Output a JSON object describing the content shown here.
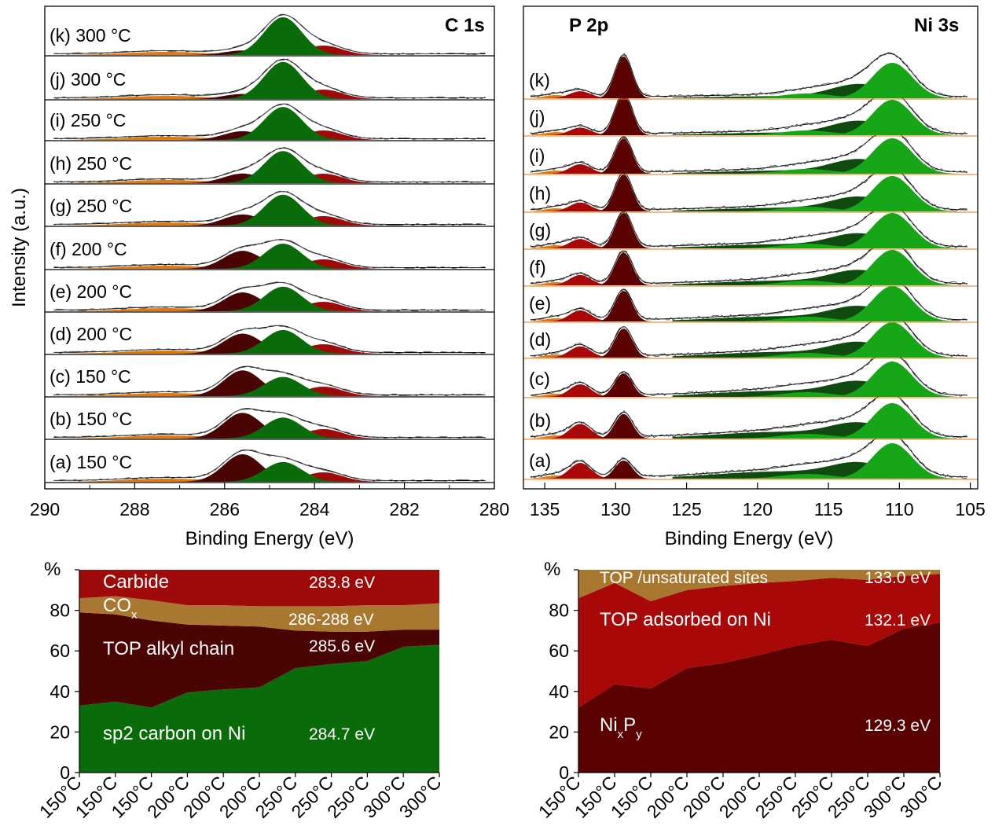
{
  "xps_c1s": {
    "title": "C 1s",
    "ylabel": "Intensity (a.u.)",
    "xlabel": "Binding Energy (eV)",
    "x_ticks": [
      "290",
      "288",
      "286",
      "284",
      "282",
      "280"
    ],
    "samples": [
      "(a) 150 °C",
      "(b) 150 °C",
      "(c) 150 °C",
      "(d) 200 °C",
      "(e) 200 °C",
      "(f) 200 °C",
      "(g) 250 °C",
      "(h) 250 °C",
      "(i) 250 °C",
      "(j) 300 °C",
      "(k) 300 °C"
    ]
  },
  "xps_p2p": {
    "title_left": "P 2p",
    "title_right": "Ni 3s",
    "xlabel": "Binding Energy (eV)",
    "x_ticks": [
      "135",
      "130",
      "125",
      "120",
      "115",
      "110",
      "105"
    ],
    "samples": [
      "(a)",
      "(b)",
      "(c)",
      "(d)",
      "(e)",
      "(f)",
      "(g)",
      "(h)",
      "(i)",
      "(j)",
      "(k)"
    ]
  },
  "colors": {
    "sp2": "#0a6b0a",
    "alkyl": "#4a0404",
    "cox": "#a97830",
    "carbide": "#9e0a0a",
    "nixpy": "#5a0202",
    "top_adsorbed": "#a80808",
    "top_unsat": "#a97830",
    "fit_green": "#17a617",
    "fit_dark_green": "#0f4a0f",
    "orange": "#e07a10"
  },
  "chart_data": [
    {
      "type": "area",
      "stacked": true,
      "ylabel": "%",
      "ylim": [
        0,
        100
      ],
      "y_ticks": [
        "0",
        "20",
        "40",
        "60",
        "80"
      ],
      "categories": [
        "150°C",
        "150°C",
        "150°C",
        "200°C",
        "200°C",
        "200°C",
        "250°C",
        "250°C",
        "250°C",
        "300°C",
        "300°C"
      ],
      "series": [
        {
          "name": "sp2 carbon on Ni",
          "energy": "284.7 eV",
          "values": [
            33,
            35,
            32,
            39.5,
            41,
            42,
            51.5,
            53.5,
            55,
            62,
            63
          ]
        },
        {
          "name": "TOP alkyl chain",
          "energy": "285.6 eV",
          "values": [
            46,
            43,
            43,
            33.5,
            31.5,
            30,
            18.5,
            16,
            14.5,
            8.5,
            7.5
          ]
        },
        {
          "name": "COx",
          "energy": "286-288 eV",
          "values": [
            7,
            9,
            10,
            9.5,
            10,
            10,
            12,
            12.5,
            13,
            12,
            13
          ]
        },
        {
          "name": "Carbide",
          "energy": "283.8 eV",
          "values": [
            14,
            13,
            15,
            17.5,
            17.5,
            18,
            18,
            18,
            17.5,
            17.5,
            16.5
          ]
        }
      ]
    },
    {
      "type": "area",
      "stacked": true,
      "ylabel": "%",
      "ylim": [
        0,
        100
      ],
      "y_ticks": [
        "0",
        "20",
        "40",
        "60",
        "80"
      ],
      "categories": [
        "150°C",
        "150°C",
        "150°C",
        "200°C",
        "200°C",
        "200°C",
        "250°C",
        "250°C",
        "250°C",
        "300°C",
        "300°C"
      ],
      "series": [
        {
          "name": "NixPy",
          "energy": "129.3 eV",
          "values": [
            32,
            43.5,
            41.5,
            51.5,
            54,
            58,
            62.5,
            65.5,
            62.5,
            71,
            74
          ]
        },
        {
          "name": "TOP adsorbed on Ni",
          "energy": "132.1 eV",
          "values": [
            54,
            50,
            43,
            38.5,
            38,
            35.5,
            32,
            30.5,
            32.5,
            26,
            24
          ]
        },
        {
          "name": "TOP /unsaturated sites",
          "energy": "133.0 eV",
          "values": [
            14,
            6.5,
            15.5,
            10,
            8,
            6.5,
            5.5,
            4,
            5,
            3,
            2
          ]
        }
      ]
    }
  ]
}
